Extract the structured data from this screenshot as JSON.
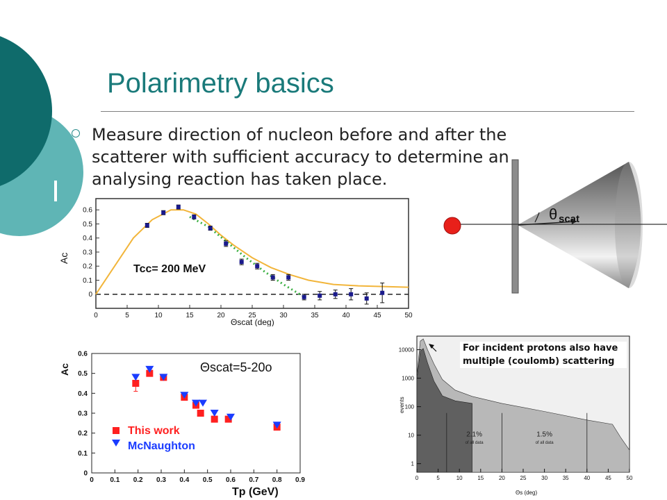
{
  "slide": {
    "title": "Polarimetry basics",
    "bullet": "Measure direction of nucleon before and after the scatterer with sufficient accuracy to determine an analysing reaction has taken place.",
    "colors": {
      "title": "#1a7a7a",
      "circle_dark": "#0f6b6b",
      "circle_light": "#5fb5b5"
    }
  },
  "diagram": {
    "theta_symbol": "θ",
    "theta_subscript": "scat"
  },
  "chart_data": [
    {
      "type": "scatter",
      "title": "",
      "annotation": "Tcc= 200 MeV",
      "xlabel": "Θscat (deg)",
      "ylabel": "Ac",
      "xlim": [
        0,
        50
      ],
      "ylim": [
        -0.1,
        0.68
      ],
      "xticks": [
        "0",
        "5",
        "10",
        "15",
        "20",
        "25",
        "30",
        "35",
        "40",
        "45",
        "50"
      ],
      "yticks": [
        "0",
        "0.1",
        "0.2",
        "0.3",
        "0.4",
        "0.5",
        "0.6"
      ],
      "points": [
        {
          "x": 8.2,
          "y": 0.49,
          "err": 0.01
        },
        {
          "x": 10.8,
          "y": 0.58,
          "err": 0.01
        },
        {
          "x": 13.2,
          "y": 0.62,
          "err": 0.01
        },
        {
          "x": 15.7,
          "y": 0.55,
          "err": 0.01
        },
        {
          "x": 18.3,
          "y": 0.47,
          "err": 0.01
        },
        {
          "x": 20.8,
          "y": 0.36,
          "err": 0.02
        },
        {
          "x": 23.3,
          "y": 0.23,
          "err": 0.02
        },
        {
          "x": 25.8,
          "y": 0.2,
          "err": 0.02
        },
        {
          "x": 28.3,
          "y": 0.12,
          "err": 0.02
        },
        {
          "x": 30.8,
          "y": 0.12,
          "err": 0.02
        },
        {
          "x": 33.3,
          "y": -0.02,
          "err": 0.02
        },
        {
          "x": 35.8,
          "y": -0.01,
          "err": 0.03
        },
        {
          "x": 38.3,
          "y": 0.0,
          "err": 0.03
        },
        {
          "x": 40.8,
          "y": 0.0,
          "err": 0.04
        },
        {
          "x": 43.3,
          "y": -0.03,
          "err": 0.04
        },
        {
          "x": 45.8,
          "y": 0.01,
          "err": 0.07
        }
      ],
      "curves": [
        {
          "style": "solid-orange",
          "x": [
            0,
            3,
            6,
            9,
            12,
            14,
            16,
            18,
            20,
            22,
            25,
            28,
            31,
            34,
            38,
            42,
            46,
            50
          ],
          "y": [
            0,
            0.2,
            0.4,
            0.53,
            0.6,
            0.6,
            0.57,
            0.5,
            0.42,
            0.35,
            0.26,
            0.19,
            0.14,
            0.1,
            0.07,
            0.06,
            0.055,
            0.05
          ]
        },
        {
          "style": "dotted-green",
          "x": [
            15,
            18,
            21,
            24,
            27,
            30,
            33
          ],
          "y": [
            0.55,
            0.48,
            0.37,
            0.26,
            0.16,
            0.07,
            -0.01
          ]
        }
      ],
      "zero_line": 0
    },
    {
      "type": "scatter",
      "title": "",
      "annotation": "Θscat=5-20o",
      "xlabel": "Tp (GeV)",
      "ylabel": "Ac",
      "xlim": [
        0,
        0.9
      ],
      "ylim": [
        0,
        0.6
      ],
      "xticks": [
        "0",
        "0.1",
        "0.2",
        "0.3",
        "0.4",
        "0.5",
        "0.6",
        "0.7",
        "0.8",
        "0.9"
      ],
      "yticks": [
        "0",
        "0.1",
        "0.2",
        "0.3",
        "0.4",
        "0.5",
        "0.6"
      ],
      "series": [
        {
          "name": "This work",
          "color": "#ff2020",
          "marker": "square",
          "x": [
            0.19,
            0.25,
            0.31,
            0.4,
            0.45,
            0.47,
            0.53,
            0.59,
            0.8
          ],
          "y": [
            0.45,
            0.5,
            0.48,
            0.38,
            0.34,
            0.3,
            0.27,
            0.27,
            0.23
          ],
          "err": [
            0.04,
            0.01,
            0.01,
            0.01,
            0.01,
            0.01,
            0.01,
            0.01,
            0.01
          ]
        },
        {
          "name": "McNaughton",
          "color": "#1a3cff",
          "marker": "triangle-down",
          "x": [
            0.19,
            0.25,
            0.31,
            0.4,
            0.45,
            0.48,
            0.53,
            0.6,
            0.8
          ],
          "y": [
            0.48,
            0.52,
            0.48,
            0.39,
            0.35,
            0.35,
            0.3,
            0.28,
            0.24
          ],
          "err": [
            0,
            0,
            0,
            0,
            0,
            0,
            0,
            0,
            0
          ]
        }
      ],
      "legend": "lower-left"
    },
    {
      "type": "area",
      "title": "",
      "annotation": "For incident protons also have multiple (coulomb) scattering",
      "xlabel": "Θs (deg)",
      "ylabel": "events",
      "yscale": "log",
      "xlim": [
        0,
        50
      ],
      "ylim": [
        0.5,
        30000
      ],
      "xticks": [
        "0",
        "5",
        "10",
        "15",
        "20",
        "25",
        "30",
        "35",
        "40",
        "45",
        "50"
      ],
      "yticks": [
        "1",
        "10",
        "100",
        "1000",
        "10000"
      ],
      "series": [
        {
          "name": "",
          "color": "#b8b8b8",
          "x": [
            0,
            0.8,
            1.5,
            2.5,
            4,
            6,
            9,
            13,
            20,
            30,
            40,
            46,
            48,
            50
          ],
          "y": [
            1200,
            20000,
            24000,
            10000,
            3200,
            900,
            380,
            230,
            130,
            68,
            34,
            24,
            8,
            3
          ]
        },
        {
          "name": "",
          "color": "#606060",
          "x": [
            0,
            0.8,
            1.5,
            2.5,
            4,
            6,
            9,
            13
          ],
          "y": [
            900,
            9000,
            11000,
            3500,
            800,
            240,
            160,
            130
          ]
        }
      ],
      "regions": [
        {
          "label": "2.1%",
          "note": "of all data"
        },
        {
          "label": "1.5%",
          "note": "of all data"
        }
      ],
      "region_bounds_deg": [
        7,
        20,
        40
      ]
    }
  ]
}
